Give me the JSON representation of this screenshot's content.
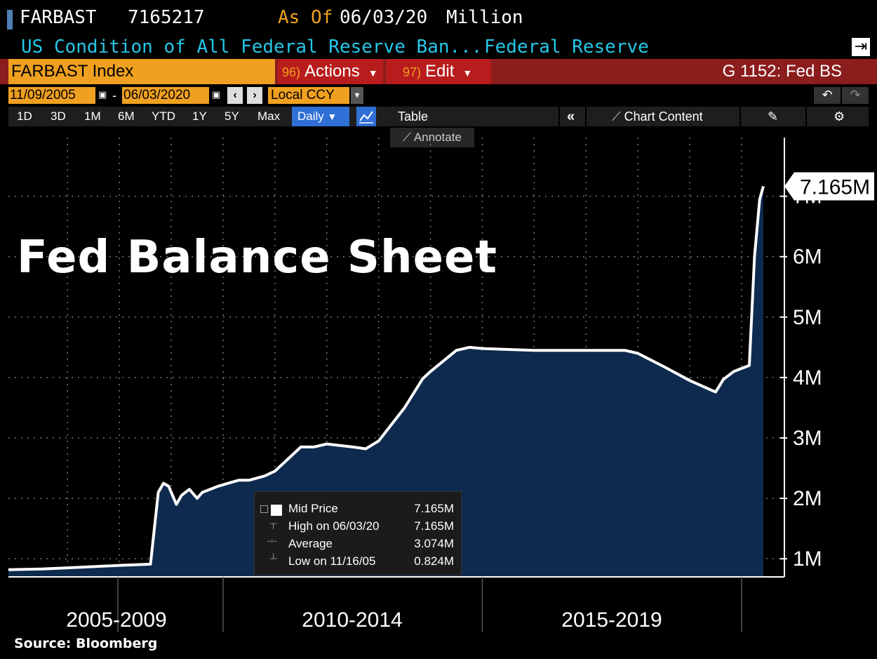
{
  "header": {
    "ticker": "FARBAST",
    "last_value": "7165217",
    "as_of_label": "As Of",
    "as_of_date": "06/03/20",
    "units": "Million",
    "description": "US Condition of All Federal Reserve Ban...",
    "source_name": "Federal Reserve",
    "export_icon": "export-icon"
  },
  "toolbar": {
    "security": "FARBAST Index",
    "actions_num": "96)",
    "actions_label": "Actions",
    "edit_num": "97)",
    "edit_label": "Edit",
    "function_code": "G 1152: Fed BS",
    "start_date": "11/09/2005",
    "date_separator": "-",
    "end_date": "06/03/2020",
    "currency": "Local CCY",
    "periods": [
      "1D",
      "3D",
      "1M",
      "6M",
      "YTD",
      "1Y",
      "5Y",
      "Max"
    ],
    "frequency": "Daily",
    "table_label": "Table",
    "chart_content_label": "Chart Content",
    "annotate_label": "Annotate",
    "colors": {
      "orange": "#f0a020",
      "red": "#b81c1c",
      "blue_selected": "#2f6fd6",
      "cyan_text": "#25c7e8"
    }
  },
  "chart_data": {
    "type": "area",
    "title": "Fed Balance Sheet",
    "x_period_labels": [
      "2005-2009",
      "2010-2014",
      "2015-2019"
    ],
    "y_ticks": [
      "1M",
      "2M",
      "3M",
      "4M",
      "5M",
      "6M",
      "7M"
    ],
    "ylim": [
      0.7,
      7.6
    ],
    "xlim": [
      2005.86,
      2020.42
    ],
    "last_value_label": "7.165M",
    "grid": true,
    "line_color": "#ffffff",
    "fill_color": "#0e2a4e",
    "series": [
      {
        "x": [
          2005.86,
          2006.5,
          2007.0,
          2007.5,
          2008.0,
          2008.6,
          2008.75,
          2008.85,
          2008.95,
          2009.1,
          2009.2,
          2009.35,
          2009.5,
          2009.6,
          2009.75,
          2009.9,
          2010.1,
          2010.3,
          2010.5,
          2010.8,
          2011.0,
          2011.5,
          2011.75,
          2012.0,
          2012.5,
          2012.75,
          2013.0,
          2013.5,
          2013.85,
          2014.0,
          2014.5,
          2014.75,
          2015.0,
          2016.0,
          2017.0,
          2017.75,
          2018.0,
          2018.5,
          2019.0,
          2019.5,
          2019.65,
          2019.85,
          2020.0,
          2020.15,
          2020.25,
          2020.35,
          2020.42
        ],
        "values": [
          0.82,
          0.83,
          0.85,
          0.87,
          0.89,
          0.91,
          2.1,
          2.25,
          2.2,
          1.9,
          2.05,
          2.15,
          2.0,
          2.1,
          2.15,
          2.2,
          2.25,
          2.3,
          2.3,
          2.37,
          2.45,
          2.85,
          2.85,
          2.9,
          2.85,
          2.82,
          2.95,
          3.5,
          3.98,
          4.1,
          4.45,
          4.5,
          4.48,
          4.45,
          4.45,
          4.45,
          4.4,
          4.18,
          3.95,
          3.76,
          3.97,
          4.1,
          4.15,
          4.2,
          6.0,
          6.95,
          7.165
        ]
      }
    ],
    "legend": {
      "items": [
        {
          "label": "Mid Price",
          "value": "7.165M"
        },
        {
          "label": "High on 06/03/20",
          "value": "7.165M"
        },
        {
          "label": "Average",
          "value": "3.074M"
        },
        {
          "label": "Low on 11/16/05",
          "value": "0.824M"
        }
      ]
    }
  },
  "footer": {
    "source": "Source:  Bloomberg"
  }
}
